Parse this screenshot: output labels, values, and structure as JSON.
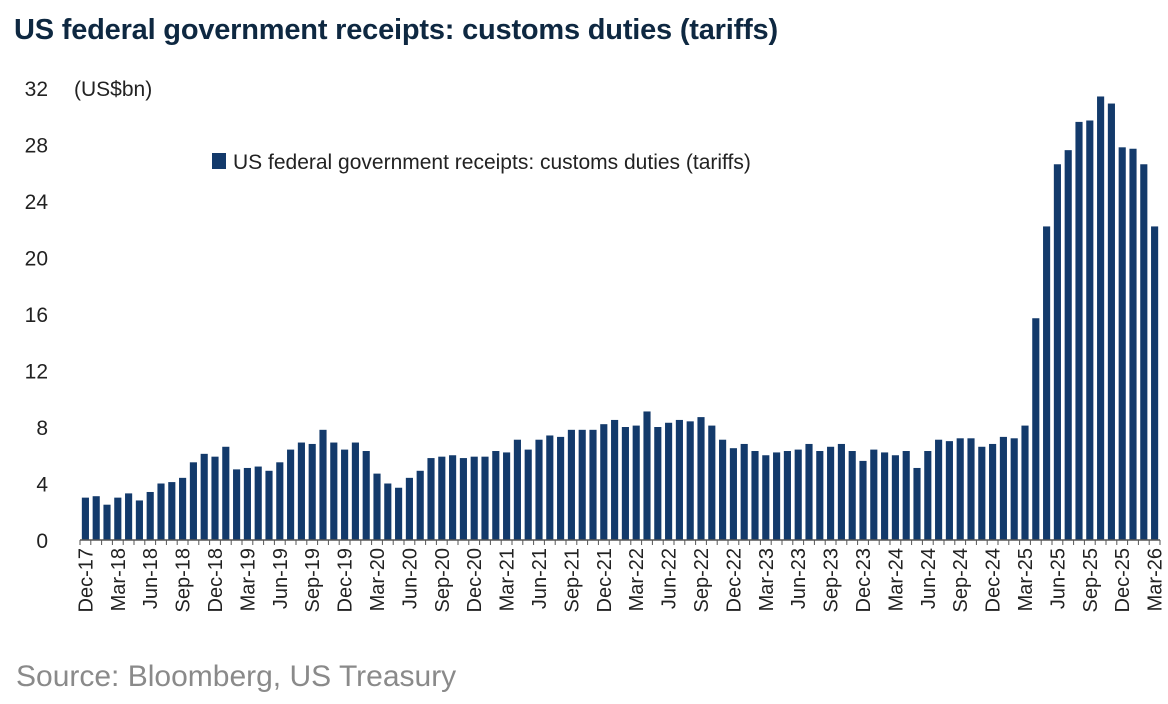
{
  "title": "US federal government receipts: customs duties (tariffs)",
  "source": "Source: Bloomberg, US Treasury",
  "colors": {
    "bar": "#133a6b",
    "axis": "#555555",
    "text": "#222222",
    "title": "#0e2841",
    "source": "#8a8a8a"
  },
  "chart_data": {
    "type": "bar",
    "title": "US federal government receipts: customs duties (tariffs)",
    "ylabel": "(US$bn)",
    "xlabel": "",
    "ylim": [
      0,
      32
    ],
    "yticks": [
      0,
      4,
      8,
      12,
      16,
      20,
      24,
      28,
      32
    ],
    "legend": "top-center",
    "grid": false,
    "series": [
      {
        "name": "US federal government receipts: customs duties (tariffs)",
        "values": [
          3.0,
          3.1,
          2.5,
          3.0,
          3.3,
          2.8,
          3.4,
          4.0,
          4.1,
          4.4,
          5.5,
          6.1,
          5.9,
          6.6,
          5.0,
          5.1,
          5.2,
          4.9,
          5.5,
          6.4,
          6.9,
          6.8,
          7.8,
          6.9,
          6.4,
          6.9,
          6.3,
          4.7,
          4.0,
          3.7,
          4.4,
          4.9,
          5.8,
          5.9,
          6.0,
          5.8,
          5.9,
          5.9,
          6.3,
          6.2,
          7.1,
          6.4,
          7.1,
          7.4,
          7.3,
          7.8,
          7.8,
          7.8,
          8.2,
          8.5,
          8.0,
          8.1,
          9.1,
          8.0,
          8.3,
          8.5,
          8.4,
          8.7,
          8.1,
          7.1,
          6.5,
          6.8,
          6.3,
          6.0,
          6.2,
          6.3,
          6.4,
          6.8,
          6.3,
          6.6,
          6.8,
          6.3,
          5.6,
          6.4,
          6.2,
          6.0,
          6.3,
          5.1,
          6.3,
          7.1,
          7.0,
          7.2,
          7.2,
          6.6,
          6.8,
          7.3,
          7.2,
          8.1,
          15.7,
          22.2,
          26.6,
          27.6,
          29.6,
          29.7,
          31.4,
          30.9,
          27.8,
          27.7,
          26.6,
          22.2
        ]
      }
    ],
    "categories": [
      "Dec-17",
      "Jan-18",
      "Feb-18",
      "Mar-18",
      "Apr-18",
      "May-18",
      "Jun-18",
      "Jul-18",
      "Aug-18",
      "Sep-18",
      "Oct-18",
      "Nov-18",
      "Dec-18",
      "Jan-19",
      "Feb-19",
      "Mar-19",
      "Apr-19",
      "May-19",
      "Jun-19",
      "Jul-19",
      "Aug-19",
      "Sep-19",
      "Oct-19",
      "Nov-19",
      "Dec-19",
      "Jan-20",
      "Feb-20",
      "Mar-20",
      "Apr-20",
      "May-20",
      "Jun-20",
      "Jul-20",
      "Aug-20",
      "Sep-20",
      "Oct-20",
      "Nov-20",
      "Dec-20",
      "Jan-21",
      "Feb-21",
      "Mar-21",
      "Apr-21",
      "May-21",
      "Jun-21",
      "Jul-21",
      "Aug-21",
      "Sep-21",
      "Oct-21",
      "Nov-21",
      "Dec-21",
      "Jan-22",
      "Feb-22",
      "Mar-22",
      "Apr-22",
      "May-22",
      "Jun-22",
      "Jul-22",
      "Aug-22",
      "Sep-22",
      "Oct-22",
      "Nov-22",
      "Dec-22",
      "Jan-23",
      "Feb-23",
      "Mar-23",
      "Apr-23",
      "May-23",
      "Jun-23",
      "Jul-23",
      "Aug-23",
      "Sep-23",
      "Oct-23",
      "Nov-23",
      "Dec-23",
      "Jan-24",
      "Feb-24",
      "Mar-24",
      "Apr-24",
      "May-24",
      "Jun-24",
      "Jul-24",
      "Aug-24",
      "Sep-24",
      "Oct-24",
      "Nov-24",
      "Dec-24",
      "Jan-25",
      "Feb-25",
      "Mar-25",
      "Apr-25",
      "May-25",
      "Jun-25",
      "Jul-25",
      "Aug-25",
      "Sep-25",
      "Oct-25",
      "Nov-25",
      "Dec-25",
      "Jan-26",
      "Feb-26",
      "Mar-26"
    ],
    "xtick_labels": [
      "Dec-17",
      "Mar-18",
      "Jun-18",
      "Sep-18",
      "Dec-18",
      "Mar-19",
      "Jun-19",
      "Sep-19",
      "Dec-19",
      "Mar-20",
      "Jun-20",
      "Sep-20",
      "Dec-20",
      "Mar-21",
      "Jun-21",
      "Sep-21",
      "Dec-21",
      "Mar-22",
      "Jun-22",
      "Sep-22",
      "Dec-22",
      "Mar-23",
      "Jun-23",
      "Sep-23",
      "Dec-23",
      "Mar-24",
      "Jun-24",
      "Sep-24",
      "Dec-24",
      "Mar-25",
      "Jun-25",
      "Sep-25",
      "Dec-25",
      "Mar-26"
    ],
    "ytick_labels": [
      "0",
      "4",
      "8",
      "12",
      "16",
      "20",
      "24",
      "28",
      "32"
    ]
  }
}
